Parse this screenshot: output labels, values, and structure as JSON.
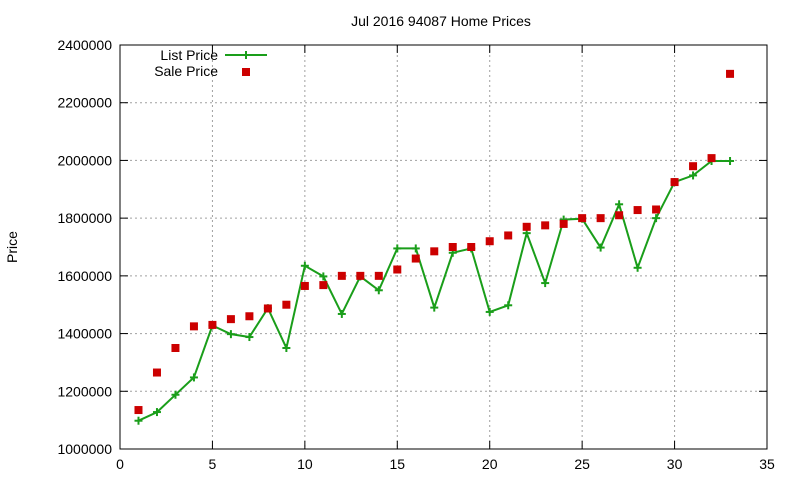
{
  "chart_data": {
    "type": "line",
    "title": "Jul 2016 94087 Home Prices",
    "xlabel": "",
    "ylabel": "Price",
    "xlim": [
      0,
      35
    ],
    "ylim": [
      1000000,
      2400000
    ],
    "xticks": [
      0,
      5,
      10,
      15,
      20,
      25,
      30,
      35
    ],
    "yticks": [
      1000000,
      1200000,
      1400000,
      1600000,
      1800000,
      2000000,
      2200000,
      2400000
    ],
    "xtick_labels": [
      "0",
      "5",
      "10",
      "15",
      "20",
      "25",
      "30",
      "35"
    ],
    "ytick_labels": [
      "1000000",
      "1200000",
      "1400000",
      "1600000",
      "1800000",
      "2000000",
      "2200000",
      "2400000"
    ],
    "grid": true,
    "legend_position": "top-left",
    "series": [
      {
        "name": "List Price",
        "style": "line+cross",
        "color": "#1a9e1a",
        "x": [
          1,
          2,
          3,
          4,
          5,
          6,
          7,
          8,
          9,
          10,
          11,
          12,
          13,
          14,
          15,
          16,
          17,
          18,
          19,
          20,
          21,
          22,
          23,
          24,
          25,
          26,
          27,
          28,
          29,
          30,
          31,
          32,
          33
        ],
        "values": [
          1098000,
          1128000,
          1188000,
          1248000,
          1428000,
          1398000,
          1388000,
          1488000,
          1350000,
          1635000,
          1598000,
          1468000,
          1598000,
          1550000,
          1695000,
          1695000,
          1490000,
          1680000,
          1695000,
          1475000,
          1498000,
          1748000,
          1575000,
          1795000,
          1798000,
          1698000,
          1848000,
          1628000,
          1800000,
          1925000,
          1948000,
          1998000,
          1998000
        ]
      },
      {
        "name": "Sale Price",
        "style": "square",
        "color": "#cc0000",
        "x": [
          1,
          2,
          3,
          4,
          5,
          6,
          7,
          8,
          9,
          10,
          11,
          12,
          13,
          14,
          15,
          16,
          17,
          18,
          19,
          20,
          21,
          22,
          23,
          24,
          25,
          26,
          27,
          28,
          29,
          30,
          31,
          32,
          33
        ],
        "values": [
          1135000,
          1265000,
          1350000,
          1425000,
          1430000,
          1450000,
          1460000,
          1487000,
          1500000,
          1565000,
          1568000,
          1600000,
          1600000,
          1600000,
          1622000,
          1660000,
          1685000,
          1700000,
          1700000,
          1720000,
          1740000,
          1770000,
          1775000,
          1780000,
          1800000,
          1800000,
          1810000,
          1828000,
          1830000,
          1925000,
          1980000,
          2008000,
          2300000
        ]
      }
    ]
  }
}
